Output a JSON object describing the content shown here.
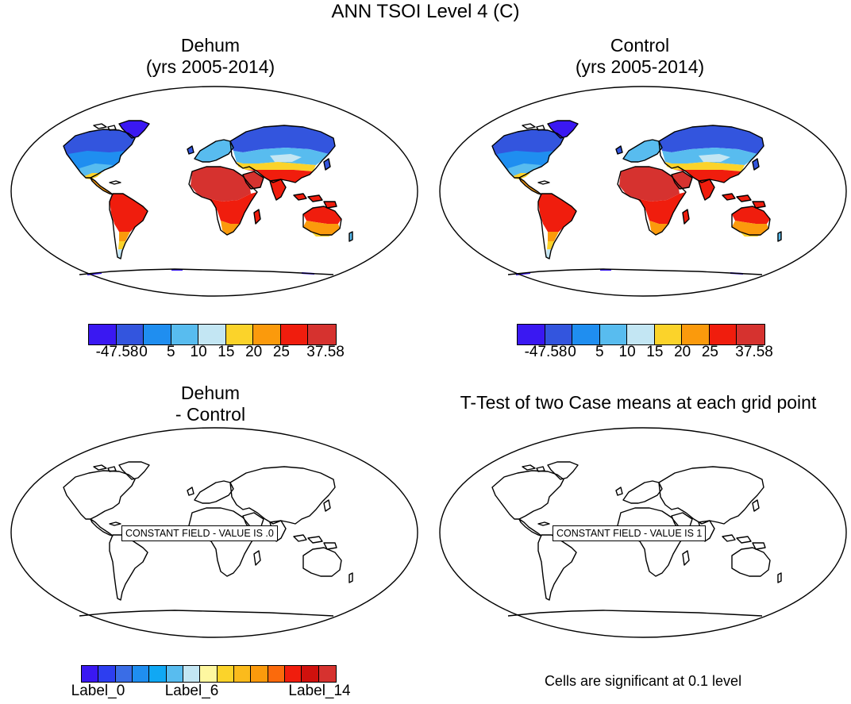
{
  "main_title": "ANN TSOI Level 4 (C)",
  "panels": [
    {
      "title_line1": "Dehum",
      "title_line2": "(yrs 2005-2014)"
    },
    {
      "title_line1": "Control",
      "title_line2": "(yrs 2005-2014)"
    },
    {
      "title_line1": "Dehum",
      "title_line2": "- Control",
      "message": "CONSTANT FIELD - VALUE IS .0"
    },
    {
      "title_line1": "T-Test of two Case means at each grid point",
      "message": "CONSTANT FIELD - VALUE IS 1"
    }
  ],
  "colorbar_top": {
    "colors": [
      "#3a18f2",
      "#3355de",
      "#1f8ef0",
      "#58bcef",
      "#c3e6f3",
      "#fbd32a",
      "#fb9a0c",
      "#f01d0d",
      "#d6322f"
    ],
    "labels": [
      "-47.58",
      "0",
      "5",
      "10",
      "15",
      "20",
      "25",
      "37.58"
    ]
  },
  "colorbar_bottom": {
    "colors": [
      "#3a18f2",
      "#2d3ef0",
      "#3a6de6",
      "#1f8ef0",
      "#10a8f4",
      "#58bcef",
      "#c3e6f3",
      "#fef7a0",
      "#fbd32a",
      "#fbbb1c",
      "#fb9a0c",
      "#fb6a0c",
      "#f01d0d",
      "#d0110d",
      "#d6322f"
    ],
    "labels": [
      "Label_0",
      "Label_6",
      "Label_14"
    ]
  },
  "footer_note": "Cells are significant at 0.1 level"
}
